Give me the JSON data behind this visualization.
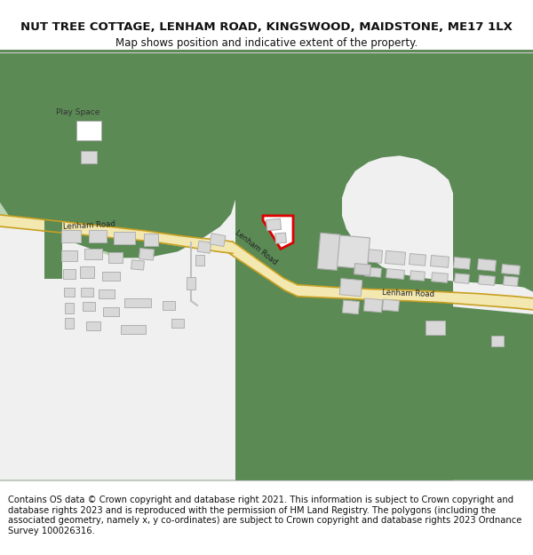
{
  "title": "NUT TREE COTTAGE, LENHAM ROAD, KINGSWOOD, MAIDSTONE, ME17 1LX",
  "subtitle": "Map shows position and indicative extent of the property.",
  "footer": "Contains OS data © Crown copyright and database right 2021. This information is subject to Crown copyright and database rights 2023 and is reproduced with the permission of HM Land Registry. The polygons (including the associated geometry, namely x, y co-ordinates) are subject to Crown copyright and database rights 2023 Ordnance Survey 100026316.",
  "bg_color": "#5b8a55",
  "road_fill": "#f2e8b0",
  "road_edge": "#c8a020",
  "light_green": "#b8d4b0",
  "white_area": "#f2f2f2",
  "bld_fill": "#d8d8d8",
  "bld_edge": "#b0b0b0",
  "red_plot": "#dd0000",
  "title_fs": 9.5,
  "sub_fs": 8.5,
  "foot_fs": 7.2
}
